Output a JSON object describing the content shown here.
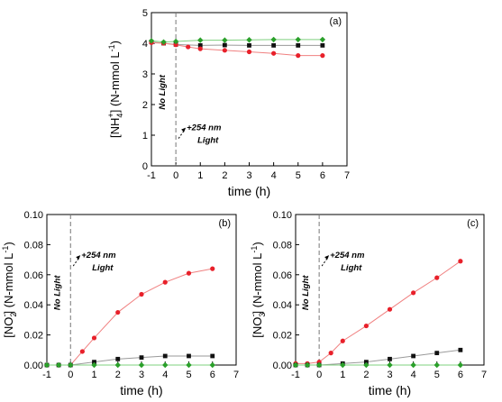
{
  "chart_data": [
    {
      "type": "scatter",
      "panel_label": "(a)",
      "ylabel": "[NH4+] (N-mmol L-1)",
      "ylabel_parts": {
        "pre": "[NH",
        "sub": "4",
        "sup": "+",
        "post": "] (N-mmol L",
        "unit_sup": "-1",
        "close": ")"
      },
      "xlabel": "time (h)",
      "xlim": [
        -1,
        7
      ],
      "ylim": [
        0,
        5
      ],
      "xticks": [
        -1,
        0,
        1,
        2,
        3,
        4,
        5,
        6,
        7
      ],
      "yticks": [
        0,
        1,
        2,
        3,
        4,
        5
      ],
      "ytick_labels": [
        "0",
        "1",
        "2",
        "3",
        "4",
        "5"
      ],
      "light_on_x": 0,
      "annotations": {
        "dark": "No Light",
        "light_line1": "+254 nm",
        "light_line2": "Light"
      },
      "series": [
        {
          "marker": "square",
          "color": "#111111",
          "line_color": "#9a9a9a",
          "x": [
            -1,
            -0.5,
            0,
            1,
            2,
            3,
            4,
            5,
            6
          ],
          "y": [
            4.04,
            4.0,
            3.96,
            3.93,
            3.94,
            3.93,
            3.93,
            3.93,
            3.93
          ]
        },
        {
          "marker": "circle",
          "color": "#e8202a",
          "line_color": "#f08080",
          "x": [
            -1,
            -0.5,
            0,
            0.5,
            1,
            2,
            3,
            4,
            5,
            6
          ],
          "y": [
            4.02,
            4.0,
            3.95,
            3.88,
            3.82,
            3.77,
            3.72,
            3.67,
            3.6,
            3.6
          ]
        },
        {
          "marker": "diamond",
          "color": "#2aa02a",
          "line_color": "#7fd07f",
          "x": [
            -1,
            -0.5,
            0,
            1,
            2,
            3,
            4,
            5,
            6
          ],
          "y": [
            4.08,
            4.04,
            4.06,
            4.1,
            4.1,
            4.11,
            4.12,
            4.12,
            4.12
          ]
        }
      ]
    },
    {
      "type": "scatter",
      "panel_label": "(b)",
      "ylabel": "[NO2-] (N-mmol L-1)",
      "ylabel_parts": {
        "pre": "[NO",
        "sub": "2",
        "sup": "-",
        "post": "] (N-mmol L",
        "unit_sup": "-1",
        "close": ")"
      },
      "xlabel": "time (h)",
      "xlim": [
        -1,
        7
      ],
      "ylim": [
        0,
        0.1
      ],
      "xticks": [
        -1,
        0,
        1,
        2,
        3,
        4,
        5,
        6,
        7
      ],
      "yticks": [
        0,
        0.02,
        0.04,
        0.06,
        0.08,
        0.1
      ],
      "ytick_labels": [
        "0.00",
        "0.02",
        "0.04",
        "0.06",
        "0.08",
        "0.10"
      ],
      "light_on_x": 0,
      "annotations": {
        "dark": "No Light",
        "light_line1": "+254 nm",
        "light_line2": "Light"
      },
      "series": [
        {
          "marker": "circle",
          "color": "#e8202a",
          "line_color": "#f08080",
          "x": [
            -1,
            -0.5,
            0,
            0.5,
            1,
            2,
            3,
            4,
            5,
            6
          ],
          "y": [
            0,
            0,
            0,
            0.009,
            0.018,
            0.035,
            0.047,
            0.055,
            0.061,
            0.064
          ]
        },
        {
          "marker": "square",
          "color": "#111111",
          "line_color": "#9a9a9a",
          "x": [
            -1,
            -0.5,
            0,
            1,
            2,
            3,
            4,
            5,
            6
          ],
          "y": [
            0,
            0,
            0,
            0.002,
            0.004,
            0.005,
            0.006,
            0.006,
            0.006
          ]
        },
        {
          "marker": "diamond",
          "color": "#2aa02a",
          "line_color": "#7fd07f",
          "x": [
            -1,
            -0.5,
            0,
            1,
            2,
            3,
            4,
            5,
            6
          ],
          "y": [
            0,
            0,
            0,
            0,
            0,
            0,
            0,
            0,
            0
          ]
        }
      ]
    },
    {
      "type": "scatter",
      "panel_label": "(c)",
      "ylabel": "[NO3-] (N-mmol L-1)",
      "ylabel_parts": {
        "pre": "[NO",
        "sub": "3",
        "sup": "-",
        "post": "] (N-mmol L",
        "unit_sup": "-1",
        "close": ")"
      },
      "xlabel": "time (h)",
      "xlim": [
        -1,
        7
      ],
      "ylim": [
        0,
        0.1
      ],
      "xticks": [
        -1,
        0,
        1,
        2,
        3,
        4,
        5,
        6,
        7
      ],
      "yticks": [
        0,
        0.02,
        0.04,
        0.06,
        0.08,
        0.1
      ],
      "ytick_labels": [
        "0.00",
        "0.02",
        "0.04",
        "0.06",
        "0.08",
        "0.10"
      ],
      "light_on_x": 0,
      "annotations": {
        "dark": "No Light",
        "light_line1": "+254 nm",
        "light_line2": "Light"
      },
      "series": [
        {
          "marker": "circle",
          "color": "#e8202a",
          "line_color": "#f08080",
          "x": [
            -1,
            -0.5,
            0,
            0.5,
            1,
            2,
            3,
            4,
            5,
            6
          ],
          "y": [
            0.001,
            0.001,
            0.002,
            0.008,
            0.016,
            0.026,
            0.037,
            0.048,
            0.058,
            0.069
          ]
        },
        {
          "marker": "square",
          "color": "#111111",
          "line_color": "#9a9a9a",
          "x": [
            -1,
            -0.5,
            0,
            1,
            2,
            3,
            4,
            5,
            6
          ],
          "y": [
            0,
            0,
            0,
            0.001,
            0.002,
            0.004,
            0.006,
            0.008,
            0.01
          ]
        },
        {
          "marker": "diamond",
          "color": "#2aa02a",
          "line_color": "#7fd07f",
          "x": [
            -1,
            -0.5,
            0,
            1,
            2,
            3,
            4,
            5,
            6
          ],
          "y": [
            0,
            0,
            0,
            0,
            0,
            0,
            0,
            0,
            0
          ]
        }
      ]
    }
  ]
}
